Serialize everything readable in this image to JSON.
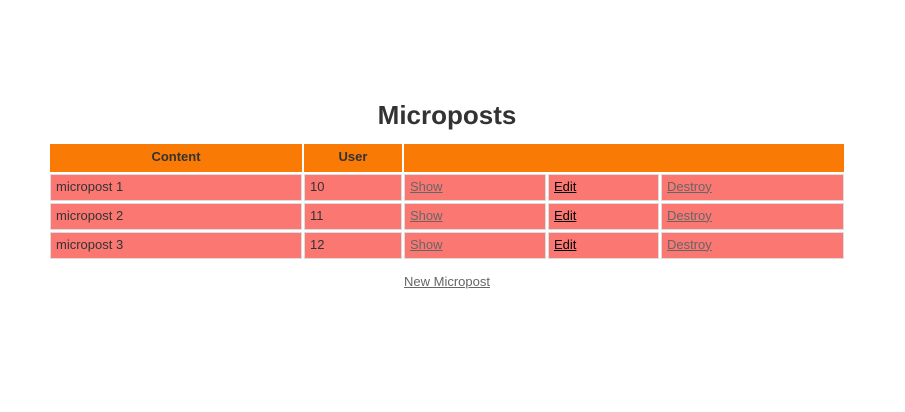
{
  "page": {
    "title": "Microposts"
  },
  "table": {
    "headers": {
      "content": "Content",
      "user": "User",
      "actions": ""
    },
    "rows": [
      {
        "content": "micropost 1",
        "user": "10",
        "show": "Show",
        "edit": "Edit",
        "destroy": "Destroy"
      },
      {
        "content": "micropost 2",
        "user": "11",
        "show": "Show",
        "edit": "Edit",
        "destroy": "Destroy"
      },
      {
        "content": "micropost 3",
        "user": "12",
        "show": "Show",
        "edit": "Edit",
        "destroy": "Destroy"
      }
    ]
  },
  "footer": {
    "new_link": "New Micropost"
  },
  "colors": {
    "header_bg": "#f97a05",
    "row_bg": "#fa7772"
  }
}
